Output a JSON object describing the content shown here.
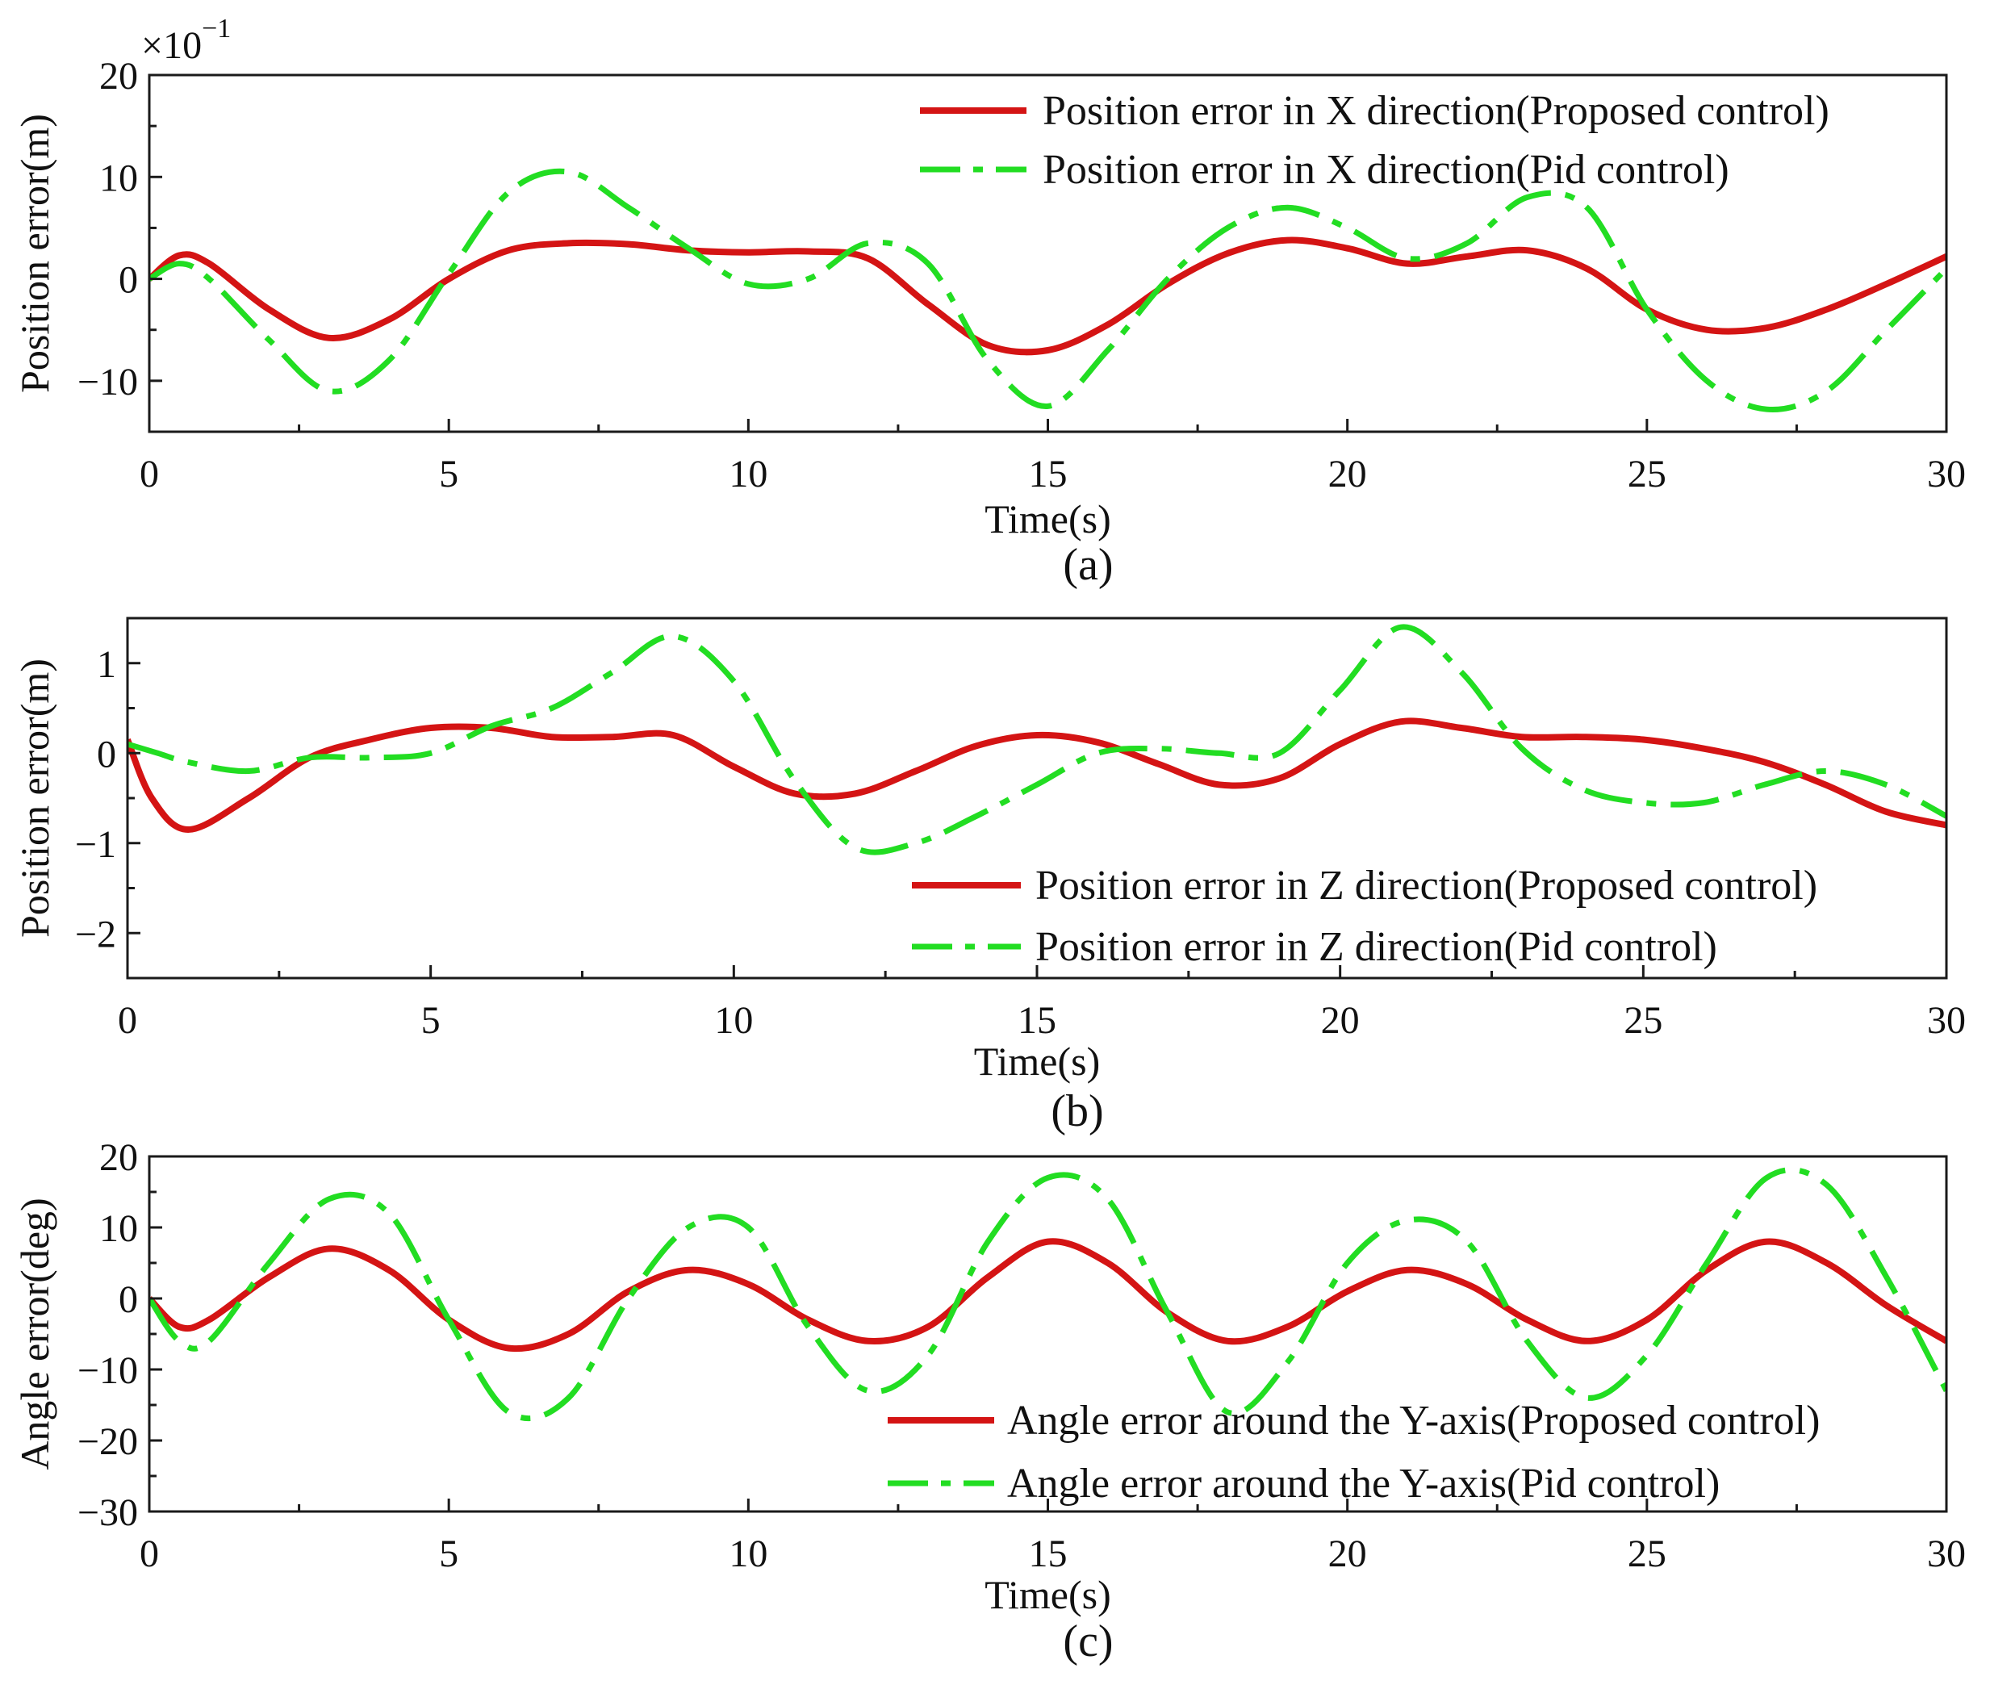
{
  "colors": {
    "proposed": "#d41414",
    "pid": "#22dd22",
    "axis": "#1a1a1a",
    "background": "#ffffff"
  },
  "chart_data": [
    {
      "type": "line",
      "panel_label": "(a)",
      "xlabel": "Time(s)",
      "ylabel": "Position error(m)",
      "y_multiplier_label": "×10",
      "y_multiplier_exp": "−1",
      "xlim": [
        0,
        30
      ],
      "ylim": [
        -15,
        20
      ],
      "xticks": [
        0,
        5,
        10,
        15,
        20,
        25,
        30
      ],
      "yticks": [
        -10,
        0,
        10,
        20
      ],
      "xtick_labels": [
        "0",
        "5",
        "10",
        "15",
        "20",
        "25",
        "30"
      ],
      "ytick_labels": [
        "−10",
        "0",
        "10",
        "20"
      ],
      "legend_position": "top-right",
      "series": [
        {
          "name": "Position error in X direction(Proposed control)",
          "style": "solid",
          "x": [
            0,
            0.5,
            1,
            2,
            3,
            4,
            5,
            6,
            7,
            8,
            9,
            10,
            11,
            12,
            13,
            14,
            15,
            16,
            17,
            18,
            19,
            20,
            21,
            22,
            23,
            24,
            25,
            26,
            27,
            28,
            29,
            30
          ],
          "y": [
            0,
            2.3,
            1.5,
            -3,
            -5.8,
            -4,
            0,
            2.8,
            3.5,
            3.4,
            2.8,
            2.6,
            2.7,
            2,
            -2.5,
            -6.5,
            -7,
            -4.5,
            -0.5,
            2.5,
            3.8,
            3,
            1.5,
            2.2,
            2.8,
            1,
            -3,
            -5,
            -4.8,
            -3,
            -0.5,
            2.2
          ]
        },
        {
          "name": "Position error in X direction(Pid control)",
          "style": "dashdot",
          "x": [
            0,
            0.5,
            1,
            2,
            3,
            4,
            5,
            6,
            7,
            8,
            9,
            10,
            11,
            12,
            13,
            14,
            15,
            16,
            17,
            18,
            19,
            20,
            21,
            22,
            23,
            24,
            25,
            26,
            27,
            28,
            29,
            30
          ],
          "y": [
            0,
            1.5,
            0,
            -6,
            -11,
            -8,
            0.5,
            8.5,
            10.5,
            7,
            3,
            -0.5,
            0,
            3.5,
            1.5,
            -8,
            -12.5,
            -7,
            0,
            5,
            7,
            5,
            2,
            3.5,
            8,
            7,
            -3,
            -10,
            -12.8,
            -11,
            -5,
            1
          ]
        }
      ]
    },
    {
      "type": "line",
      "panel_label": "(b)",
      "xlabel": "Time(s)",
      "ylabel": "Position error(m)",
      "xlim": [
        0,
        30
      ],
      "ylim": [
        -2.5,
        1.5
      ],
      "xticks": [
        0,
        5,
        10,
        15,
        20,
        25,
        30
      ],
      "yticks": [
        -2,
        -1,
        0,
        1
      ],
      "xtick_labels": [
        "0",
        "5",
        "10",
        "15",
        "20",
        "25",
        "30"
      ],
      "ytick_labels": [
        "−2",
        "−1",
        "0",
        "1"
      ],
      "legend_position": "bottom-right",
      "series": [
        {
          "name": "Position error in Z direction(Proposed control)",
          "style": "solid",
          "x": [
            0,
            0.4,
            1,
            2,
            3,
            4,
            5,
            6,
            7,
            8,
            9,
            10,
            11,
            12,
            13,
            14,
            15,
            16,
            17,
            18,
            19,
            20,
            21,
            22,
            23,
            24,
            25,
            26,
            27,
            28,
            29,
            30
          ],
          "y": [
            0.15,
            -0.5,
            -0.85,
            -0.5,
            -0.05,
            0.15,
            0.28,
            0.28,
            0.18,
            0.18,
            0.2,
            -0.15,
            -0.45,
            -0.45,
            -0.2,
            0.08,
            0.2,
            0.12,
            -0.12,
            -0.35,
            -0.28,
            0.1,
            0.35,
            0.28,
            0.18,
            0.18,
            0.15,
            0.05,
            -0.1,
            -0.35,
            -0.65,
            -0.8
          ]
        },
        {
          "name": "Position error in Z direction(Pid control)",
          "style": "dashdot",
          "x": [
            0,
            0.5,
            1,
            2,
            3,
            4,
            5,
            6,
            7,
            8,
            9,
            10,
            11,
            12,
            13,
            14,
            15,
            16,
            17,
            18,
            19,
            20,
            21,
            22,
            23,
            24,
            25,
            26,
            27,
            28,
            29,
            30
          ],
          "y": [
            0.1,
            0,
            -0.1,
            -0.2,
            -0.05,
            -0.05,
            0,
            0.3,
            0.5,
            0.9,
            1.3,
            0.8,
            -0.3,
            -1.05,
            -1.0,
            -0.7,
            -0.35,
            0,
            0.05,
            0,
            0,
            0.7,
            1.4,
            0.9,
            0.05,
            -0.4,
            -0.55,
            -0.55,
            -0.35,
            -0.2,
            -0.35,
            -0.7
          ]
        }
      ]
    },
    {
      "type": "line",
      "panel_label": "(c)",
      "xlabel": "Time(s)",
      "ylabel": "Angle error(deg)",
      "xlim": [
        0,
        30
      ],
      "ylim": [
        -30,
        20
      ],
      "xticks": [
        0,
        5,
        10,
        15,
        20,
        25,
        30
      ],
      "yticks": [
        -30,
        -20,
        -10,
        0,
        10,
        20
      ],
      "xtick_labels": [
        "0",
        "5",
        "10",
        "15",
        "20",
        "25",
        "30"
      ],
      "ytick_labels": [
        "−30",
        "−20",
        "−10",
        "0",
        "10",
        "20"
      ],
      "legend_position": "bottom-right",
      "series": [
        {
          "name": "Angle error around the Y-axis(Proposed control)",
          "style": "solid",
          "x": [
            0,
            0.5,
            1,
            2,
            3,
            4,
            5,
            6,
            7,
            8,
            9,
            10,
            11,
            12,
            13,
            14,
            15,
            16,
            17,
            18,
            19,
            20,
            21,
            22,
            23,
            24,
            25,
            26,
            27,
            28,
            29,
            30
          ],
          "y": [
            0,
            -4,
            -3,
            3,
            7,
            4,
            -3,
            -7,
            -5,
            1,
            4,
            2,
            -3,
            -6,
            -4,
            3,
            8,
            5,
            -2,
            -6,
            -4,
            1,
            4,
            2,
            -3,
            -6,
            -3,
            4,
            8,
            5,
            -1,
            -6
          ]
        },
        {
          "name": "Angle error around the Y-axis(Pid control)",
          "style": "dashdot",
          "x": [
            0,
            0.5,
            1,
            2,
            3,
            4,
            5,
            6,
            7,
            8,
            9,
            10,
            11,
            12,
            13,
            14,
            15,
            16,
            17,
            18,
            19,
            20,
            21,
            22,
            23,
            24,
            25,
            26,
            27,
            28,
            29,
            30
          ],
          "y": [
            0,
            -6,
            -6,
            5,
            14,
            12,
            -3,
            -16,
            -14,
            0,
            10,
            10,
            -4,
            -13,
            -8,
            8,
            17,
            14,
            -2,
            -16,
            -9,
            5,
            11,
            8,
            -6,
            -14,
            -8,
            5,
            17,
            16,
            3,
            -13
          ]
        }
      ]
    }
  ]
}
